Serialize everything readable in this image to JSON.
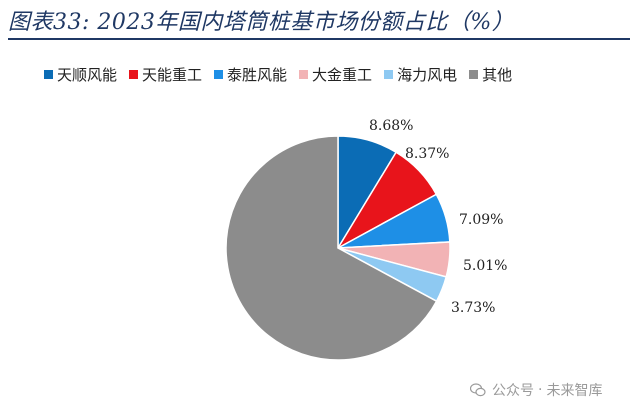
{
  "title": "图表33:  2023年国内塔筒桩基市场份额占比（%）",
  "chart_data": {
    "type": "pie",
    "title": "图表33:  2023年国内塔筒桩基市场份额占比（%）",
    "legend_position": "top",
    "slices": [
      {
        "name": "天顺风能",
        "value": 8.68,
        "label": "8.68%",
        "color": "#0b6cb5"
      },
      {
        "name": "天能重工",
        "value": 8.37,
        "label": "8.37%",
        "color": "#e8141b"
      },
      {
        "name": "泰胜风能",
        "value": 7.09,
        "label": "7.09%",
        "color": "#1e8fe6"
      },
      {
        "name": "大金重工",
        "value": 5.01,
        "label": "5.01%",
        "color": "#f2b3b5"
      },
      {
        "name": "海力风电",
        "value": 3.73,
        "label": "3.73%",
        "color": "#8ec9f2"
      },
      {
        "name": "其他",
        "value": 67.12,
        "label": "",
        "color": "#8c8c8c"
      }
    ]
  },
  "watermark": {
    "icon": "wechat-icon",
    "text_a": "公众号",
    "separator": "·",
    "text_b": "未来智库"
  }
}
